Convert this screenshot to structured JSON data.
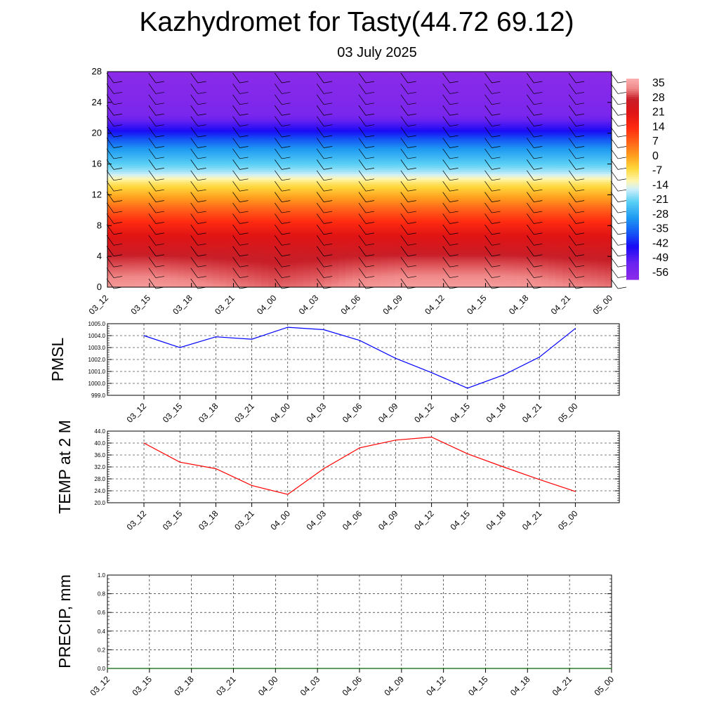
{
  "header": {
    "title": "Kazhydromet for Tasty(44.72 69.12)",
    "subtitle": "03 July 2025"
  },
  "time_labels": [
    "03_12",
    "03_15",
    "03_18",
    "03_21",
    "04_00",
    "04_03",
    "04_06",
    "04_09",
    "04_12",
    "04_15",
    "04_18",
    "04_21",
    "05_00"
  ],
  "chart_data": [
    {
      "type": "heatmap",
      "title": "",
      "xlabel": "",
      "ylabel": "",
      "x": [
        "03_12",
        "03_15",
        "03_18",
        "03_21",
        "04_00",
        "04_03",
        "04_06",
        "04_09",
        "04_12",
        "04_15",
        "04_18",
        "04_21",
        "05_00"
      ],
      "y_ticks": [
        0,
        4,
        8,
        12,
        16,
        20,
        24,
        28
      ],
      "ylim": [
        0,
        28
      ],
      "colorbar_labels": [
        "35",
        "28",
        "21",
        "14",
        "7",
        "0",
        "-7",
        "-14",
        "-21",
        "-28",
        "-35",
        "-42",
        "-49",
        "-56"
      ],
      "colorbar_range": [
        -60,
        38
      ],
      "colorbar_stops": [
        {
          "v": -60,
          "c": "#8b2be8"
        },
        {
          "v": -52,
          "c": "#6a22f0"
        },
        {
          "v": -44,
          "c": "#1a0af5"
        },
        {
          "v": -38,
          "c": "#1450f5"
        },
        {
          "v": -30,
          "c": "#1e9af2"
        },
        {
          "v": -22,
          "c": "#5ad0f5"
        },
        {
          "v": -16,
          "c": "#cfeffa"
        },
        {
          "v": -12,
          "c": "#fff6b0"
        },
        {
          "v": -6,
          "c": "#ffd83c"
        },
        {
          "v": 0,
          "c": "#ffa21e"
        },
        {
          "v": 7,
          "c": "#ff6419"
        },
        {
          "v": 14,
          "c": "#ff2a10"
        },
        {
          "v": 21,
          "c": "#e01414"
        },
        {
          "v": 28,
          "c": "#c81e28"
        },
        {
          "v": 33,
          "c": "#f08888"
        },
        {
          "v": 38,
          "c": "#fbb0b0"
        }
      ],
      "layers_by_height": [
        {
          "h": 0,
          "t": 34
        },
        {
          "h": 4,
          "t": 28
        },
        {
          "h": 7,
          "t": 20
        },
        {
          "h": 10,
          "t": 8
        },
        {
          "h": 13.5,
          "t": -8
        },
        {
          "h": 15,
          "t": -18
        },
        {
          "h": 18,
          "t": -30
        },
        {
          "h": 20.5,
          "t": -45
        },
        {
          "h": 22.5,
          "t": -56
        },
        {
          "h": 28,
          "t": -60
        }
      ],
      "surface_warm_by_time": [
        0.9,
        0.95,
        0.75,
        0.5,
        0.25,
        0.45,
        0.8,
        1.0,
        1.0,
        1.0,
        0.9,
        0.6,
        0.4
      ],
      "wind_barbs": "present"
    },
    {
      "type": "line",
      "title": "",
      "xlabel": "",
      "ylabel": "PMSL",
      "x": [
        "03_12",
        "03_15",
        "03_18",
        "03_21",
        "04_00",
        "04_03",
        "04_06",
        "04_09",
        "04_12",
        "04_15",
        "04_18",
        "04_21",
        "05_00"
      ],
      "series": [
        {
          "values": [
            1004.0,
            1003.0,
            1003.9,
            1003.7,
            1004.7,
            1004.5,
            1003.6,
            1002.1,
            1000.9,
            999.6,
            1000.7,
            1002.2,
            1004.6
          ],
          "color": "#0000ff"
        }
      ],
      "ylim": [
        999.0,
        1005.0
      ],
      "y_ticks": [
        "999.0",
        "1000.0",
        "1001.0",
        "1002.0",
        "1003.0",
        "1004.0",
        "1005.0"
      ],
      "grid": true
    },
    {
      "type": "line",
      "title": "",
      "xlabel": "",
      "ylabel": "TEMP at 2 M",
      "x": [
        "03_12",
        "03_15",
        "03_18",
        "03_21",
        "04_00",
        "04_03",
        "04_06",
        "04_09",
        "04_12",
        "04_15",
        "04_18",
        "04_21",
        "05_00"
      ],
      "series": [
        {
          "values": [
            40.0,
            33.6,
            31.4,
            25.8,
            22.8,
            31.4,
            38.4,
            41.0,
            42.0,
            36.4,
            32.0,
            27.8,
            23.8
          ],
          "color": "#ff0000"
        }
      ],
      "ylim": [
        20.0,
        44.0
      ],
      "y_ticks": [
        "20.0",
        "24.0",
        "28.0",
        "32.0",
        "36.0",
        "40.0",
        "44.0"
      ],
      "grid": true
    },
    {
      "type": "line",
      "title": "",
      "xlabel": "",
      "ylabel": "PRECIP, mm",
      "x": [
        "03_12",
        "03_15",
        "03_18",
        "03_21",
        "04_00",
        "04_03",
        "04_06",
        "04_09",
        "04_12",
        "04_15",
        "04_18",
        "04_21",
        "05_00"
      ],
      "series": [
        {
          "values": [
            0,
            0,
            0,
            0,
            0,
            0,
            0,
            0,
            0,
            0,
            0,
            0,
            0
          ],
          "color": "#006400"
        }
      ],
      "ylim": [
        0.0,
        1.0
      ],
      "y_ticks": [
        "0.0",
        "0.2",
        "0.4",
        "0.6",
        "0.8",
        "1.0"
      ],
      "grid": true
    }
  ]
}
